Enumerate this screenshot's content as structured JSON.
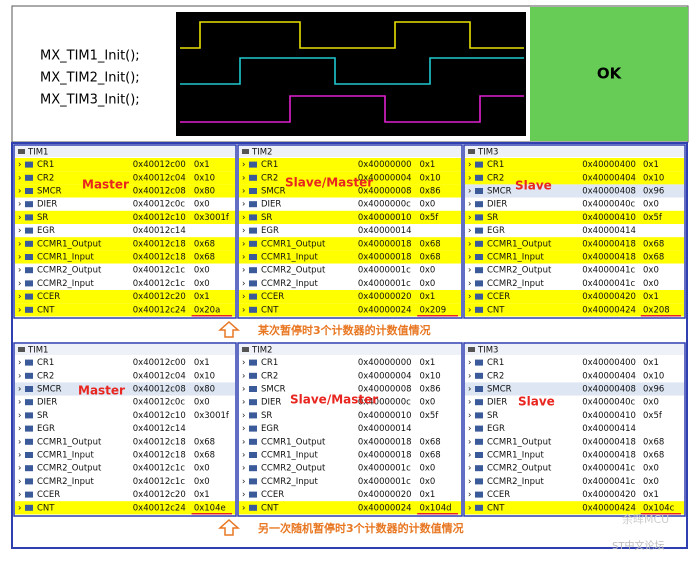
{
  "code_lines": [
    "MX_TIM1_Init();",
    "MX_TIM2_Init();",
    "MX_TIM3_Init();"
  ],
  "result": "OK",
  "sections": [
    {
      "caption": "某次暂停时3个计数器的计数值情况",
      "panels": [
        {
          "title": "TIM1",
          "role": "Master",
          "rows": [
            {
              "name": "CR1",
              "address": "0x40012c00",
              "value": "0x1",
              "color": "yellow"
            },
            {
              "name": "CR2",
              "address": "0x40012c04",
              "value": "0x10",
              "color": "yellow"
            },
            {
              "name": "SMCR",
              "address": "0x40012c08",
              "value": "0x80",
              "color": "yellow"
            },
            {
              "name": "DIER",
              "address": "0x40012c0c",
              "value": "0x0",
              "color": "white"
            },
            {
              "name": "SR",
              "address": "0x40012c10",
              "value": "0x3001f",
              "color": "yellow"
            },
            {
              "name": "EGR",
              "address": "0x40012c14",
              "color": "white"
            },
            {
              "name": "CCMR1_Output",
              "address": "0x40012c18",
              "value": "0x68",
              "color": "yellow"
            },
            {
              "name": "CCMR1_Input",
              "address": "0x40012c18",
              "value": "0x68",
              "color": "yellow"
            },
            {
              "name": "CCMR2_Output",
              "address": "0x40012c1c",
              "value": "0x0",
              "color": "white"
            },
            {
              "name": "CCMR2_Input",
              "address": "0x40012c1c",
              "value": "0x0",
              "color": "white"
            },
            {
              "name": "CCER",
              "address": "0x40012c20",
              "value": "0x1",
              "color": "yellow"
            },
            {
              "name": "CNT",
              "address": "0x40012c24",
              "value": "0x20a",
              "color": "yellow"
            }
          ]
        },
        {
          "title": "TIM2",
          "role": "Slave/Master",
          "rows": [
            {
              "name": "CR1",
              "address": "0x40000000",
              "value": "0x1",
              "color": "yellow"
            },
            {
              "name": "CR2",
              "address": "0x40000004",
              "value": "0x10",
              "color": "yellow"
            },
            {
              "name": "SMCR",
              "address": "0x40000008",
              "value": "0x86",
              "color": "yellow"
            },
            {
              "name": "DIER",
              "address": "0x4000000c",
              "value": "0x0",
              "color": "white"
            },
            {
              "name": "SR",
              "address": "0x40000010",
              "value": "0x5f",
              "color": "yellow"
            },
            {
              "name": "EGR",
              "address": "0x40000014",
              "color": "white"
            },
            {
              "name": "CCMR1_Output",
              "address": "0x40000018",
              "value": "0x68",
              "color": "yellow"
            },
            {
              "name": "CCMR1_Input",
              "address": "0x40000018",
              "value": "0x68",
              "color": "yellow"
            },
            {
              "name": "CCMR2_Output",
              "address": "0x4000001c",
              "value": "0x0",
              "color": "white"
            },
            {
              "name": "CCMR2_Input",
              "address": "0x4000001c",
              "value": "0x0",
              "color": "white"
            },
            {
              "name": "CCER",
              "address": "0x40000020",
              "value": "0x1",
              "color": "yellow"
            },
            {
              "name": "CNT",
              "address": "0x40000024",
              "value": "0x209",
              "color": "yellow"
            }
          ]
        },
        {
          "title": "TIM3",
          "role": "Slave",
          "rows": [
            {
              "name": "CR1",
              "address": "0x40000400",
              "value": "0x1",
              "color": "yellow"
            },
            {
              "name": "CR2",
              "address": "0x40000404",
              "value": "0x10",
              "color": "yellow"
            },
            {
              "name": "SMCR",
              "address": "0x40000408",
              "value": "0x96",
              "color": "#dde6f2"
            },
            {
              "name": "DIER",
              "address": "0x4000040c",
              "value": "0x0",
              "color": "white"
            },
            {
              "name": "SR",
              "address": "0x40000410",
              "value": "0x5f",
              "color": "yellow"
            },
            {
              "name": "EGR",
              "address": "0x40000414",
              "color": "white"
            },
            {
              "name": "CCMR1_Output",
              "address": "0x40000418",
              "value": "0x68",
              "color": "yellow"
            },
            {
              "name": "CCMR1_Input",
              "address": "0x40000418",
              "value": "0x68",
              "color": "yellow"
            },
            {
              "name": "CCMR2_Output",
              "address": "0x4000041c",
              "value": "0x0",
              "color": "white"
            },
            {
              "name": "CCMR2_Input",
              "address": "0x4000041c",
              "value": "0x0",
              "color": "white"
            },
            {
              "name": "CCER",
              "address": "0x40000420",
              "value": "0x1",
              "color": "yellow"
            },
            {
              "name": "CNT",
              "address": "0x40000424",
              "value": "0x208",
              "color": "yellow"
            }
          ]
        }
      ]
    },
    {
      "caption": "另一次随机暂停时3个计数器的计数值情况",
      "panels": [
        {
          "title": "TIM1",
          "role": "Master",
          "rows": [
            {
              "name": "CR1",
              "address": "0x40012c00",
              "value": "0x1",
              "color": "white"
            },
            {
              "name": "CR2",
              "address": "0x40012c04",
              "value": "0x10",
              "color": "white"
            },
            {
              "name": "SMCR",
              "address": "0x40012c08",
              "value": "0x80",
              "color": "#dde6f2"
            },
            {
              "name": "DIER",
              "address": "0x40012c0c",
              "value": "0x0",
              "color": "white"
            },
            {
              "name": "SR",
              "address": "0x40012c10",
              "value": "0x3001f",
              "color": "white"
            },
            {
              "name": "EGR",
              "address": "0x40012c14",
              "color": "white"
            },
            {
              "name": "CCMR1_Output",
              "address": "0x40012c18",
              "value": "0x68",
              "color": "white"
            },
            {
              "name": "CCMR1_Input",
              "address": "0x40012c18",
              "value": "0x68",
              "color": "white"
            },
            {
              "name": "CCMR2_Output",
              "address": "0x40012c1c",
              "value": "0x0",
              "color": "white"
            },
            {
              "name": "CCMR2_Input",
              "address": "0x40012c1c",
              "value": "0x0",
              "color": "white"
            },
            {
              "name": "CCER",
              "address": "0x40012c20",
              "value": "0x1",
              "color": "white"
            },
            {
              "name": "CNT",
              "address": "0x40012c24",
              "value": "0x104e",
              "color": "yellow"
            }
          ]
        },
        {
          "title": "TIM2",
          "role": "Slave/Master",
          "rows": [
            {
              "name": "CR1",
              "address": "0x40000000",
              "value": "0x1",
              "color": "white"
            },
            {
              "name": "CR2",
              "address": "0x40000004",
              "value": "0x10",
              "color": "white"
            },
            {
              "name": "SMCR",
              "address": "0x40000008",
              "value": "0x86",
              "color": "white"
            },
            {
              "name": "DIER",
              "address": "0x4000000c",
              "value": "0x0",
              "color": "white"
            },
            {
              "name": "SR",
              "address": "0x40000010",
              "value": "0x5f",
              "color": "white"
            },
            {
              "name": "EGR",
              "address": "0x40000014",
              "color": "white"
            },
            {
              "name": "CCMR1_Output",
              "address": "0x40000018",
              "value": "0x68",
              "color": "white"
            },
            {
              "name": "CCMR1_Input",
              "address": "0x40000018",
              "value": "0x68",
              "color": "white"
            },
            {
              "name": "CCMR2_Output",
              "address": "0x4000001c",
              "value": "0x0",
              "color": "white"
            },
            {
              "name": "CCMR2_Input",
              "address": "0x4000001c",
              "value": "0x0",
              "color": "white"
            },
            {
              "name": "CCER",
              "address": "0x40000020",
              "value": "0x1",
              "color": "white"
            },
            {
              "name": "CNT",
              "address": "0x40000024",
              "value": "0x104d",
              "color": "yellow"
            }
          ]
        },
        {
          "title": "TIM3",
          "role": "Slave",
          "rows": [
            {
              "name": "CR1",
              "address": "0x40000400",
              "value": "0x1",
              "color": "white"
            },
            {
              "name": "CR2",
              "address": "0x40000404",
              "value": "0x10",
              "color": "white"
            },
            {
              "name": "SMCR",
              "address": "0x40000408",
              "value": "0x96",
              "color": "#dde6f2"
            },
            {
              "name": "DIER",
              "address": "0x4000040c",
              "value": "0x0",
              "color": "white"
            },
            {
              "name": "SR",
              "address": "0x40000410",
              "value": "0x5f",
              "color": "white"
            },
            {
              "name": "EGR",
              "address": "0x40000414",
              "color": "white"
            },
            {
              "name": "CCMR1_Output",
              "address": "0x40000418",
              "value": "0x68",
              "color": "white"
            },
            {
              "name": "CCMR1_Input",
              "address": "0x40000418",
              "value": "0x68",
              "color": "white"
            },
            {
              "name": "CCMR2_Output",
              "address": "0x4000041c",
              "value": "0x0",
              "color": "white"
            },
            {
              "name": "CCMR2_Input",
              "address": "0x4000041c",
              "value": "0x0",
              "color": "white"
            },
            {
              "name": "CCER",
              "address": "0x40000420",
              "value": "0x1",
              "color": "white"
            },
            {
              "name": "CNT",
              "address": "0x40000424",
              "value": "0x104c",
              "color": "yellow"
            }
          ]
        }
      ]
    }
  ],
  "watermark": [
    "余晖MCU",
    "ST中文论坛"
  ]
}
